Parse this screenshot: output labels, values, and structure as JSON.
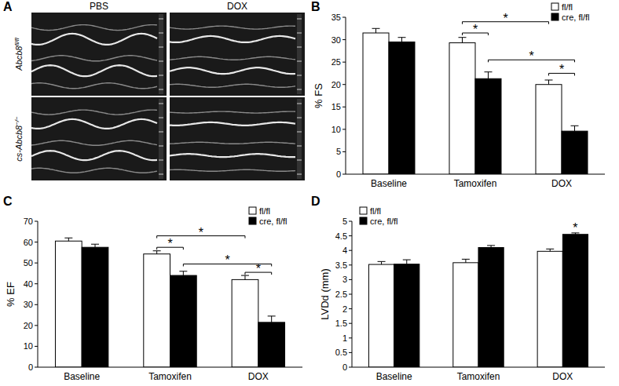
{
  "panel_a": {
    "title": "A",
    "columns": [
      "PBS",
      "DOX"
    ],
    "rows": [
      {
        "text": "Abcb8",
        "sup": "fl/fl"
      },
      {
        "text": "cs-Abcb8",
        "sup": "−/−"
      }
    ]
  },
  "chart_data": [
    {
      "type": "bar",
      "title": "B",
      "y_label": "% FS",
      "categories": [
        "Baseline",
        "Tamoxifen",
        "DOX"
      ],
      "series": [
        {
          "name": "fl/fl",
          "color": "#ffffff",
          "values": [
            31.5,
            29.3,
            20.0
          ],
          "errors": [
            1.0,
            1.2,
            1.0
          ]
        },
        {
          "name": "cre, fl/fl",
          "color": "#000000",
          "values": [
            29.5,
            21.3,
            9.6
          ],
          "errors": [
            1.0,
            1.5,
            1.2
          ]
        }
      ],
      "ylim": [
        0,
        35
      ],
      "yticks": [
        0,
        5,
        10,
        15,
        20,
        25,
        30,
        35
      ],
      "legend": "upper right",
      "annotations": [
        {
          "text": "*",
          "y": 31.5,
          "between": [
            [
              0,
              1
            ],
            [
              1,
              1
            ]
          ]
        },
        {
          "text": "*",
          "y": 34,
          "between": [
            [
              0,
              1
            ],
            [
              0,
              2
            ]
          ]
        },
        {
          "text": "*",
          "y": 25.5,
          "between": [
            [
              1,
              1
            ],
            [
              1,
              2
            ]
          ]
        },
        {
          "text": "*",
          "y": 22.5,
          "between": [
            [
              0,
              2
            ],
            [
              1,
              2
            ]
          ]
        }
      ]
    },
    {
      "type": "bar",
      "title": "C",
      "y_label": "% EF",
      "categories": [
        "Baseline",
        "Tamoxifen",
        "DOX"
      ],
      "series": [
        {
          "name": "fl/fl",
          "color": "#ffffff",
          "values": [
            60.5,
            54.3,
            42.0
          ],
          "errors": [
            1.5,
            1.5,
            2.0
          ]
        },
        {
          "name": "cre, fl/fl",
          "color": "#000000",
          "values": [
            57.5,
            44.0,
            21.5
          ],
          "errors": [
            1.5,
            2.0,
            3.0
          ]
        }
      ],
      "ylim": [
        0,
        70
      ],
      "yticks": [
        0,
        10,
        20,
        30,
        40,
        50,
        60,
        70
      ],
      "legend": "upper right",
      "annotations": [
        {
          "text": "*",
          "y": 57.5,
          "between": [
            [
              0,
              1
            ],
            [
              1,
              1
            ]
          ]
        },
        {
          "text": "*",
          "y": 63,
          "between": [
            [
              0,
              1
            ],
            [
              0,
              2
            ]
          ]
        },
        {
          "text": "*",
          "y": 49.5,
          "between": [
            [
              1,
              1
            ],
            [
              1,
              2
            ]
          ]
        },
        {
          "text": "*",
          "y": 45.5,
          "between": [
            [
              0,
              2
            ],
            [
              1,
              2
            ]
          ]
        }
      ]
    },
    {
      "type": "bar",
      "title": "D",
      "y_label": "LVDd (mm)",
      "categories": [
        "Baseline",
        "Tamoxifen",
        "DOX"
      ],
      "series": [
        {
          "name": "fl/fl",
          "color": "#ffffff",
          "values": [
            3.52,
            3.58,
            3.97
          ],
          "errors": [
            0.1,
            0.12,
            0.08
          ]
        },
        {
          "name": "cre, fl/fl",
          "color": "#000000",
          "values": [
            3.53,
            4.1,
            4.55
          ],
          "errors": [
            0.15,
            0.07,
            0.05
          ]
        }
      ],
      "ylim": [
        0,
        5
      ],
      "yticks": [
        0,
        0.5,
        1,
        1.5,
        2,
        2.5,
        3,
        3.5,
        4,
        4.5,
        5
      ],
      "legend": "upper left",
      "annotations": [
        {
          "text": "*",
          "y": 4.72,
          "between": [
            [
              1,
              2
            ]
          ]
        }
      ]
    }
  ]
}
